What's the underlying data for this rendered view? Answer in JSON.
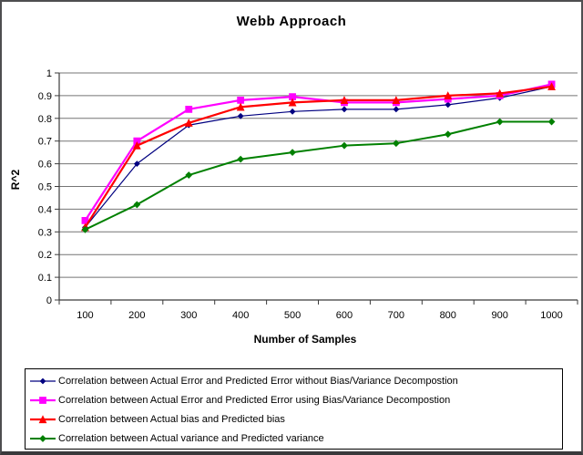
{
  "chart_data": {
    "type": "line",
    "title": "Webb Approach",
    "xlabel": "Number of Samples",
    "ylabel": "R^2",
    "categories": [
      100,
      200,
      300,
      400,
      500,
      600,
      700,
      800,
      900,
      1000
    ],
    "xtick_labels": [
      "100",
      "200",
      "300",
      "400",
      "500",
      "600",
      "700",
      "800",
      "900",
      "1000"
    ],
    "ylim": [
      0,
      1
    ],
    "ytick_values": [
      0,
      0.1,
      0.2,
      0.3,
      0.4,
      0.5,
      0.6,
      0.7,
      0.8,
      0.9,
      1
    ],
    "ytick_labels": [
      "0",
      "0.1",
      "0.2",
      "0.3",
      "0.4",
      "0.5",
      "0.6",
      "0.7",
      "0.8",
      "0.9",
      "1"
    ],
    "grid": true,
    "legend_position": "bottom",
    "series": [
      {
        "name": "Correlation between Actual Error and Predicted Error without Bias/Variance Decompostion",
        "color": "#000080",
        "marker": "diamond",
        "line_width": 1.2,
        "marker_size": 2.7,
        "values": [
          0.32,
          0.6,
          0.77,
          0.81,
          0.83,
          0.84,
          0.84,
          0.86,
          0.89,
          0.94
        ]
      },
      {
        "name": "Correlation between Actual Error and Predicted Error using Bias/Variance Decompostion",
        "color": "#FF00FF",
        "marker": "square",
        "line_width": 2.2,
        "marker_size": 3.4,
        "values": [
          0.35,
          0.7,
          0.84,
          0.88,
          0.895,
          0.87,
          0.87,
          0.885,
          0.9,
          0.95
        ]
      },
      {
        "name": "Correlation between Actual bias and Predicted bias",
        "color": "#FF0000",
        "marker": "triangle",
        "line_width": 2.2,
        "marker_size": 3.6,
        "values": [
          0.32,
          0.68,
          0.78,
          0.85,
          0.87,
          0.88,
          0.88,
          0.9,
          0.91,
          0.94
        ]
      },
      {
        "name": "Correlation between Actual variance and Predicted variance",
        "color": "#008000",
        "marker": "diamond",
        "line_width": 2.0,
        "marker_size": 3.2,
        "values": [
          0.31,
          0.42,
          0.55,
          0.62,
          0.65,
          0.68,
          0.69,
          0.73,
          0.785,
          0.785
        ]
      }
    ],
    "colors": {
      "gridline": "#757575",
      "axis": "#3b3b3b",
      "text": "#000000"
    }
  }
}
